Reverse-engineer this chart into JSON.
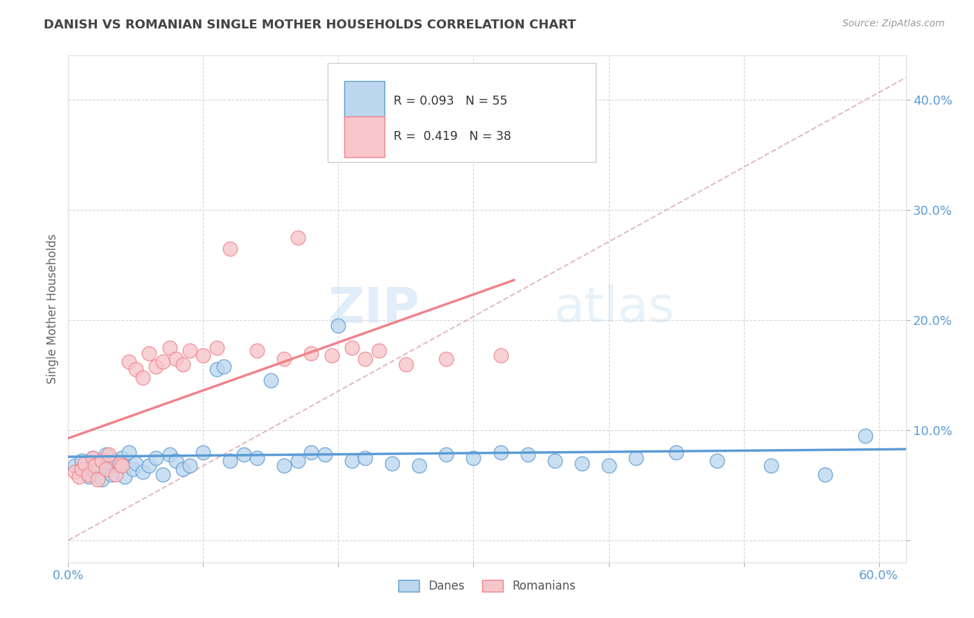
{
  "title": "DANISH VS ROMANIAN SINGLE MOTHER HOUSEHOLDS CORRELATION CHART",
  "source": "Source: ZipAtlas.com",
  "ylabel": "Single Mother Households",
  "xlim": [
    0.0,
    0.62
  ],
  "ylim": [
    -0.02,
    0.44
  ],
  "xticks": [
    0.0,
    0.1,
    0.2,
    0.3,
    0.4,
    0.5,
    0.6
  ],
  "xticklabels": [
    "0.0%",
    "",
    "",
    "",
    "",
    "",
    "60.0%"
  ],
  "yticks": [
    0.0,
    0.1,
    0.2,
    0.3,
    0.4
  ],
  "yticklabels": [
    "",
    "10.0%",
    "20.0%",
    "30.0%",
    "40.0%"
  ],
  "danes_color": "#5b9bd5",
  "danes_fill": "#bdd7ee",
  "romanians_color": "#f0828a",
  "romanians_fill": "#f7c6cb",
  "danes_R": 0.093,
  "danes_N": 55,
  "romanians_R": 0.419,
  "romanians_N": 38,
  "danes_x": [
    0.005,
    0.01,
    0.012,
    0.015,
    0.018,
    0.02,
    0.022,
    0.025,
    0.028,
    0.03,
    0.032,
    0.035,
    0.038,
    0.04,
    0.042,
    0.045,
    0.048,
    0.05,
    0.055,
    0.06,
    0.065,
    0.07,
    0.075,
    0.08,
    0.085,
    0.09,
    0.1,
    0.11,
    0.115,
    0.12,
    0.13,
    0.14,
    0.15,
    0.16,
    0.17,
    0.18,
    0.19,
    0.2,
    0.21,
    0.22,
    0.24,
    0.26,
    0.28,
    0.3,
    0.32,
    0.34,
    0.36,
    0.38,
    0.4,
    0.42,
    0.45,
    0.48,
    0.52,
    0.56,
    0.59
  ],
  "danes_y": [
    0.068,
    0.072,
    0.065,
    0.058,
    0.075,
    0.062,
    0.07,
    0.055,
    0.078,
    0.065,
    0.06,
    0.072,
    0.068,
    0.075,
    0.058,
    0.08,
    0.065,
    0.07,
    0.062,
    0.068,
    0.075,
    0.06,
    0.078,
    0.072,
    0.065,
    0.068,
    0.08,
    0.155,
    0.158,
    0.072,
    0.078,
    0.075,
    0.145,
    0.068,
    0.072,
    0.08,
    0.078,
    0.195,
    0.072,
    0.075,
    0.07,
    0.068,
    0.078,
    0.075,
    0.08,
    0.078,
    0.072,
    0.07,
    0.068,
    0.075,
    0.08,
    0.072,
    0.068,
    0.06,
    0.095
  ],
  "romanians_x": [
    0.005,
    0.008,
    0.01,
    0.012,
    0.015,
    0.018,
    0.02,
    0.022,
    0.025,
    0.028,
    0.03,
    0.035,
    0.038,
    0.04,
    0.045,
    0.05,
    0.055,
    0.06,
    0.065,
    0.07,
    0.075,
    0.08,
    0.085,
    0.09,
    0.1,
    0.11,
    0.12,
    0.14,
    0.16,
    0.17,
    0.18,
    0.195,
    0.21,
    0.22,
    0.23,
    0.25,
    0.28,
    0.32
  ],
  "romanians_y": [
    0.062,
    0.058,
    0.065,
    0.07,
    0.06,
    0.075,
    0.068,
    0.055,
    0.072,
    0.065,
    0.078,
    0.06,
    0.07,
    0.068,
    0.162,
    0.155,
    0.148,
    0.17,
    0.158,
    0.162,
    0.175,
    0.165,
    0.16,
    0.172,
    0.168,
    0.175,
    0.265,
    0.172,
    0.165,
    0.275,
    0.17,
    0.168,
    0.175,
    0.165,
    0.172,
    0.16,
    0.165,
    0.168
  ],
  "watermark_zip": "ZIP",
  "watermark_atlas": "atlas",
  "background_color": "#ffffff",
  "grid_color": "#cccccc",
  "title_color": "#444444",
  "tick_color": "#5b9bd5",
  "axis_label_color": "#666666",
  "diagonal_color": "#d4a0a8"
}
